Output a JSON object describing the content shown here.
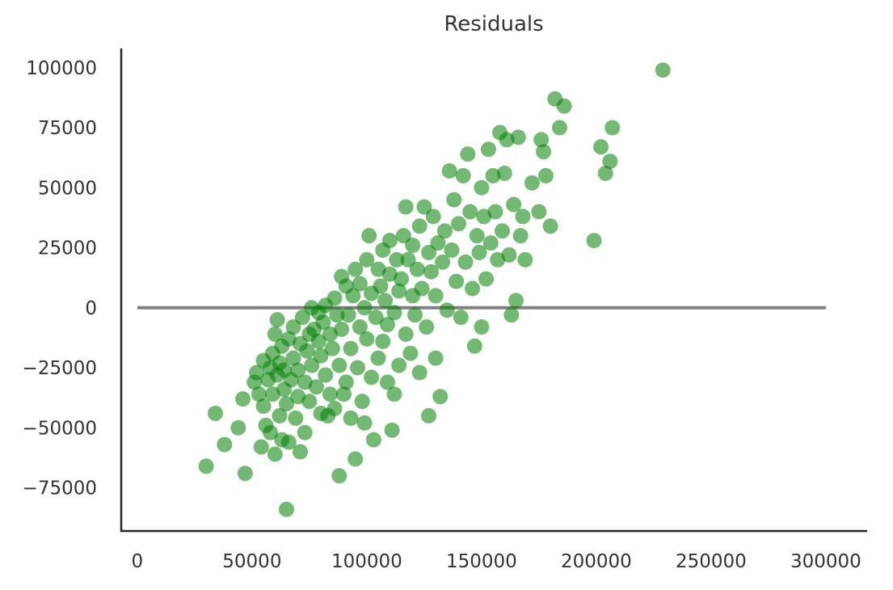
{
  "chart_data": {
    "type": "scatter",
    "title": "Residuals",
    "xlabel": "",
    "ylabel": "",
    "xlim": [
      -7000,
      318000
    ],
    "ylim": [
      -93000,
      108000
    ],
    "x_ticks": [
      0,
      50000,
      100000,
      150000,
      200000,
      250000,
      300000
    ],
    "x_tick_labels": [
      "0",
      "50000",
      "100000",
      "150000",
      "200000",
      "250000",
      "300000"
    ],
    "y_ticks": [
      100000,
      75000,
      50000,
      25000,
      0,
      -25000,
      -50000,
      -75000
    ],
    "y_tick_labels": [
      "100000",
      "75000",
      "50000",
      "25000",
      "0",
      "−25000",
      "−50000",
      "−75000"
    ],
    "grid": false,
    "legend": "none",
    "colors": {
      "points": "#008000",
      "reference_line": "#808080",
      "axes": "#262626",
      "text": "#333333"
    },
    "reference_line": {
      "y": 0,
      "x_start": 0,
      "x_end": 300000
    },
    "series": [
      {
        "points": [
          [
            30000,
            -66000
          ],
          [
            34000,
            -44000
          ],
          [
            38000,
            -57000
          ],
          [
            44000,
            -50000
          ],
          [
            46000,
            -38000
          ],
          [
            47000,
            -69000
          ],
          [
            51000,
            -31000
          ],
          [
            52000,
            -27000
          ],
          [
            53000,
            -36000
          ],
          [
            54000,
            -58000
          ],
          [
            55000,
            -22000
          ],
          [
            55000,
            -41000
          ],
          [
            56000,
            -49000
          ],
          [
            57000,
            -30000
          ],
          [
            58000,
            -25000
          ],
          [
            58000,
            -52000
          ],
          [
            59000,
            -19000
          ],
          [
            59000,
            -36000
          ],
          [
            60000,
            -61000
          ],
          [
            60000,
            -11000
          ],
          [
            61000,
            -5000
          ],
          [
            61000,
            -28000
          ],
          [
            62000,
            -45000
          ],
          [
            62000,
            -23000
          ],
          [
            63000,
            -16000
          ],
          [
            63000,
            -55000
          ],
          [
            64000,
            -34000
          ],
          [
            64000,
            -26000
          ],
          [
            65000,
            -84000
          ],
          [
            65000,
            -40000
          ],
          [
            66000,
            -13000
          ],
          [
            66000,
            -56000
          ],
          [
            67000,
            -30000
          ],
          [
            68000,
            -21000
          ],
          [
            68000,
            -8000
          ],
          [
            69000,
            -46000
          ],
          [
            70000,
            -26000
          ],
          [
            70000,
            -37000
          ],
          [
            71000,
            -15000
          ],
          [
            71000,
            -60000
          ],
          [
            72000,
            -4000
          ],
          [
            73000,
            -52000
          ],
          [
            73000,
            -31000
          ],
          [
            74000,
            -18000
          ],
          [
            75000,
            -11000
          ],
          [
            75000,
            -39000
          ],
          [
            76000,
            0
          ],
          [
            76000,
            -24000
          ],
          [
            77000,
            -9000
          ],
          [
            78000,
            -33000
          ],
          [
            79000,
            -2000
          ],
          [
            79000,
            -14000
          ],
          [
            80000,
            -44000
          ],
          [
            80000,
            -20000
          ],
          [
            81000,
            -6000
          ],
          [
            82000,
            -28000
          ],
          [
            82000,
            1000
          ],
          [
            83000,
            -45000
          ],
          [
            84000,
            -11000
          ],
          [
            84000,
            -36000
          ],
          [
            85000,
            -17000
          ],
          [
            86000,
            4000
          ],
          [
            86000,
            -42000
          ],
          [
            87000,
            -3000
          ],
          [
            88000,
            -70000
          ],
          [
            88000,
            -24000
          ],
          [
            89000,
            13000
          ],
          [
            89000,
            -9000
          ],
          [
            90000,
            -36000
          ],
          [
            91000,
            9000
          ],
          [
            91000,
            -31000
          ],
          [
            92000,
            -3000
          ],
          [
            93000,
            -46000
          ],
          [
            93000,
            -17000
          ],
          [
            94000,
            5000
          ],
          [
            95000,
            16000
          ],
          [
            95000,
            -63000
          ],
          [
            96000,
            -25000
          ],
          [
            97000,
            -8000
          ],
          [
            97000,
            10000
          ],
          [
            98000,
            -39000
          ],
          [
            99000,
            0
          ],
          [
            99000,
            -48000
          ],
          [
            100000,
            20000
          ],
          [
            100000,
            -13000
          ],
          [
            101000,
            30000
          ],
          [
            102000,
            -29000
          ],
          [
            102000,
            6000
          ],
          [
            103000,
            -55000
          ],
          [
            104000,
            -4000
          ],
          [
            105000,
            16000
          ],
          [
            105000,
            -21000
          ],
          [
            106000,
            9000
          ],
          [
            107000,
            -14000
          ],
          [
            107000,
            24000
          ],
          [
            108000,
            3000
          ],
          [
            109000,
            -31000
          ],
          [
            109000,
            -7000
          ],
          [
            110000,
            28000
          ],
          [
            110000,
            14000
          ],
          [
            111000,
            -51000
          ],
          [
            112000,
            -2000
          ],
          [
            112000,
            -36000
          ],
          [
            113000,
            20000
          ],
          [
            114000,
            7000
          ],
          [
            114000,
            -24000
          ],
          [
            115000,
            12000
          ],
          [
            116000,
            30000
          ],
          [
            117000,
            -11000
          ],
          [
            117000,
            42000
          ],
          [
            118000,
            20000
          ],
          [
            119000,
            -19000
          ],
          [
            120000,
            5000
          ],
          [
            120000,
            26000
          ],
          [
            121000,
            -3000
          ],
          [
            122000,
            16000
          ],
          [
            123000,
            34000
          ],
          [
            123000,
            -27000
          ],
          [
            124000,
            8000
          ],
          [
            125000,
            42000
          ],
          [
            126000,
            -8000
          ],
          [
            127000,
            23000
          ],
          [
            127000,
            -45000
          ],
          [
            128000,
            15000
          ],
          [
            129000,
            38000
          ],
          [
            130000,
            -21000
          ],
          [
            130000,
            5000
          ],
          [
            131000,
            27000
          ],
          [
            132000,
            -37000
          ],
          [
            133000,
            19000
          ],
          [
            134000,
            32000
          ],
          [
            135000,
            -1000
          ],
          [
            136000,
            57000
          ],
          [
            137000,
            24000
          ],
          [
            138000,
            45000
          ],
          [
            139000,
            11000
          ],
          [
            140000,
            35000
          ],
          [
            141000,
            -4000
          ],
          [
            142000,
            55000
          ],
          [
            143000,
            19000
          ],
          [
            144000,
            64000
          ],
          [
            145000,
            40000
          ],
          [
            146000,
            8000
          ],
          [
            147000,
            -16000
          ],
          [
            148000,
            30000
          ],
          [
            149000,
            23000
          ],
          [
            150000,
            50000
          ],
          [
            150000,
            -8000
          ],
          [
            151000,
            38000
          ],
          [
            152000,
            12000
          ],
          [
            153000,
            66000
          ],
          [
            154000,
            27000
          ],
          [
            155000,
            55000
          ],
          [
            156000,
            40000
          ],
          [
            157000,
            20000
          ],
          [
            158000,
            73000
          ],
          [
            159000,
            32000
          ],
          [
            160000,
            56000
          ],
          [
            161000,
            70000
          ],
          [
            162000,
            22000
          ],
          [
            163000,
            -3000
          ],
          [
            164000,
            43000
          ],
          [
            165000,
            3000
          ],
          [
            166000,
            71000
          ],
          [
            167000,
            30000
          ],
          [
            168000,
            38000
          ],
          [
            169000,
            20000
          ],
          [
            172000,
            52000
          ],
          [
            175000,
            40000
          ],
          [
            176000,
            70000
          ],
          [
            177000,
            65000
          ],
          [
            178000,
            55000
          ],
          [
            180000,
            34000
          ],
          [
            182000,
            87000
          ],
          [
            184000,
            75000
          ],
          [
            186000,
            84000
          ],
          [
            199000,
            28000
          ],
          [
            202000,
            67000
          ],
          [
            204000,
            56000
          ],
          [
            206000,
            61000
          ],
          [
            207000,
            75000
          ],
          [
            229000,
            99000
          ]
        ]
      }
    ]
  }
}
